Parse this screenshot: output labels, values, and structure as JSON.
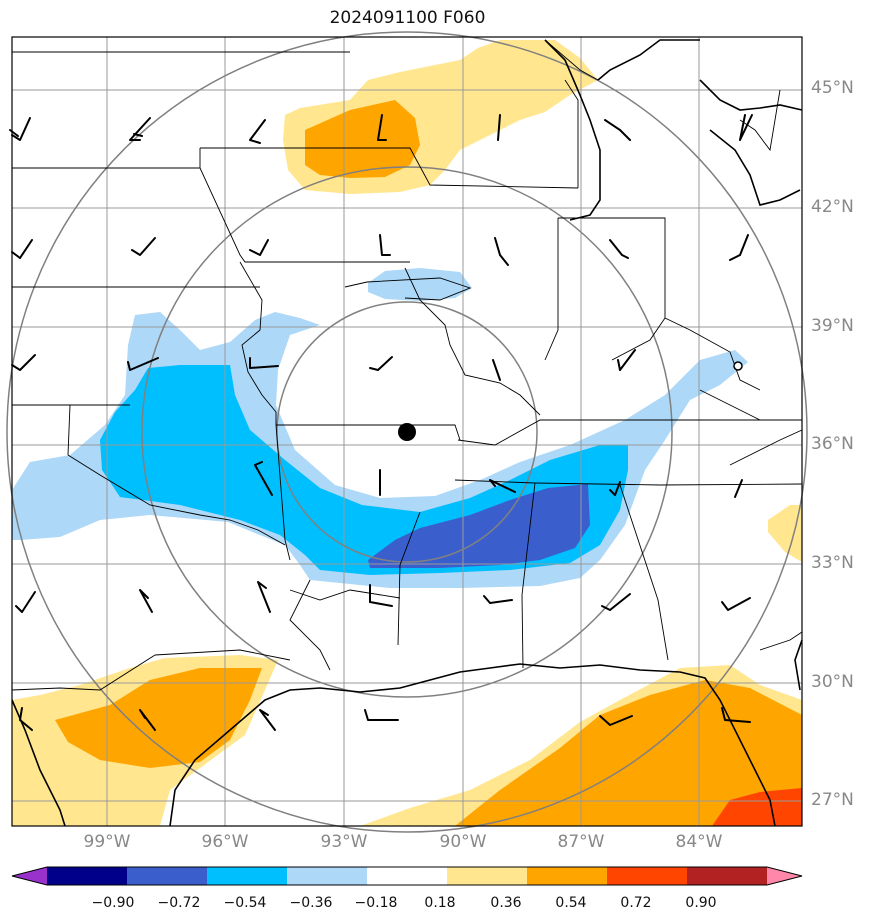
{
  "title": "2024091100 F060",
  "lat_labels": [
    "45°N",
    "42°N",
    "39°N",
    "36°N",
    "33°N",
    "30°N",
    "27°N"
  ],
  "lon_labels": [
    "99°W",
    "96°W",
    "93°W",
    "90°W",
    "87°W",
    "84°W"
  ],
  "colorbar": {
    "ticks": [
      "−0.90",
      "−0.72",
      "−0.54",
      "−0.36",
      "−0.18",
      "0.18",
      "0.36",
      "0.54",
      "0.72",
      "0.90"
    ],
    "colors": [
      "#9932cc",
      "#00008b",
      "#3a5fcd",
      "#00bfff",
      "#add8f7",
      "#ffffff",
      "#ffe68f",
      "#ffa500",
      "#ff4500",
      "#b22222",
      "#ff88aa"
    ]
  },
  "palette": {
    "light_blue": "#add8f7",
    "sky_blue": "#00bfff",
    "royal_blue": "#3a5fcd",
    "light_yellow": "#ffe68f",
    "orange": "#ffa500",
    "orange_red": "#ff4500"
  }
}
